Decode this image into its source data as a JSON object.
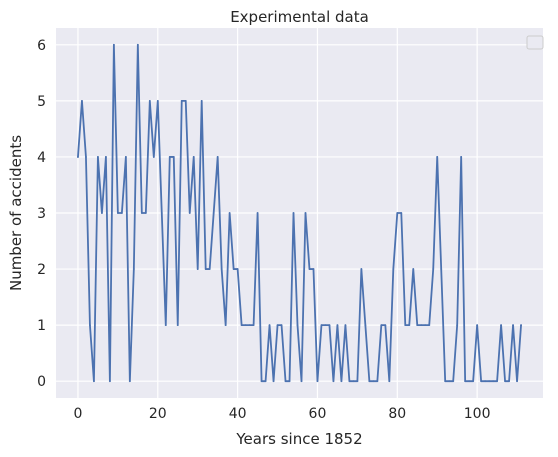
{
  "chart_data": {
    "type": "line",
    "title": "Experimental data",
    "xlabel": "Years since 1852",
    "ylabel": "Number of accidents",
    "xlim": [
      -5.5,
      116.5
    ],
    "ylim": [
      -0.3,
      6.3
    ],
    "xticks": [
      0,
      20,
      40,
      60,
      80,
      100
    ],
    "yticks": [
      0,
      1,
      2,
      3,
      4,
      5,
      6
    ],
    "grid": true,
    "legend": "top-right, empty",
    "colors": {
      "plot_background": "#eaeaf2",
      "grid": "#ffffff",
      "line": "#4c72b0"
    },
    "series": [
      {
        "x": [
          0,
          1,
          2,
          3,
          4,
          5,
          6,
          7,
          8,
          9,
          10,
          11,
          12,
          13,
          14,
          15,
          16,
          17,
          18,
          19,
          20,
          21,
          22,
          23,
          24,
          25,
          26,
          27,
          28,
          29,
          30,
          31,
          32,
          33,
          34,
          35,
          36,
          37,
          38,
          39,
          40,
          41,
          42,
          43,
          44,
          45,
          46,
          47,
          48,
          49,
          50,
          51,
          52,
          53,
          54,
          55,
          56,
          57,
          58,
          59,
          60,
          61,
          62,
          63,
          64,
          65,
          66,
          67,
          68,
          69,
          70,
          71,
          72,
          73,
          74,
          75,
          76,
          77,
          78,
          79,
          80,
          81,
          82,
          83,
          84,
          85,
          86,
          87,
          88,
          89,
          90,
          91,
          92,
          93,
          94,
          95,
          96,
          97,
          98,
          99,
          100,
          101,
          102,
          103,
          104,
          105,
          106,
          107,
          108,
          109,
          110,
          111
        ],
        "values": [
          4,
          5,
          4,
          1,
          0,
          4,
          3,
          4,
          0,
          6,
          3,
          3,
          4,
          0,
          2,
          6,
          3,
          3,
          5,
          4,
          5,
          3,
          1,
          4,
          4,
          1,
          5,
          5,
          3,
          4,
          2,
          5,
          2,
          2,
          3,
          4,
          2,
          1,
          3,
          2,
          2,
          1,
          1,
          1,
          1,
          3,
          0,
          0,
          1,
          0,
          1,
          1,
          0,
          0,
          3,
          1,
          0,
          3,
          2,
          2,
          0,
          1,
          1,
          1,
          0,
          1,
          0,
          1,
          0,
          0,
          0,
          2,
          1,
          0,
          0,
          0,
          1,
          1,
          0,
          2,
          3,
          3,
          1,
          1,
          2,
          1,
          1,
          1,
          1,
          2,
          4,
          2,
          0,
          0,
          0,
          1,
          4,
          0,
          0,
          0,
          1,
          0,
          0,
          0,
          0,
          0,
          1,
          0,
          0,
          1,
          0,
          1
        ]
      }
    ]
  }
}
